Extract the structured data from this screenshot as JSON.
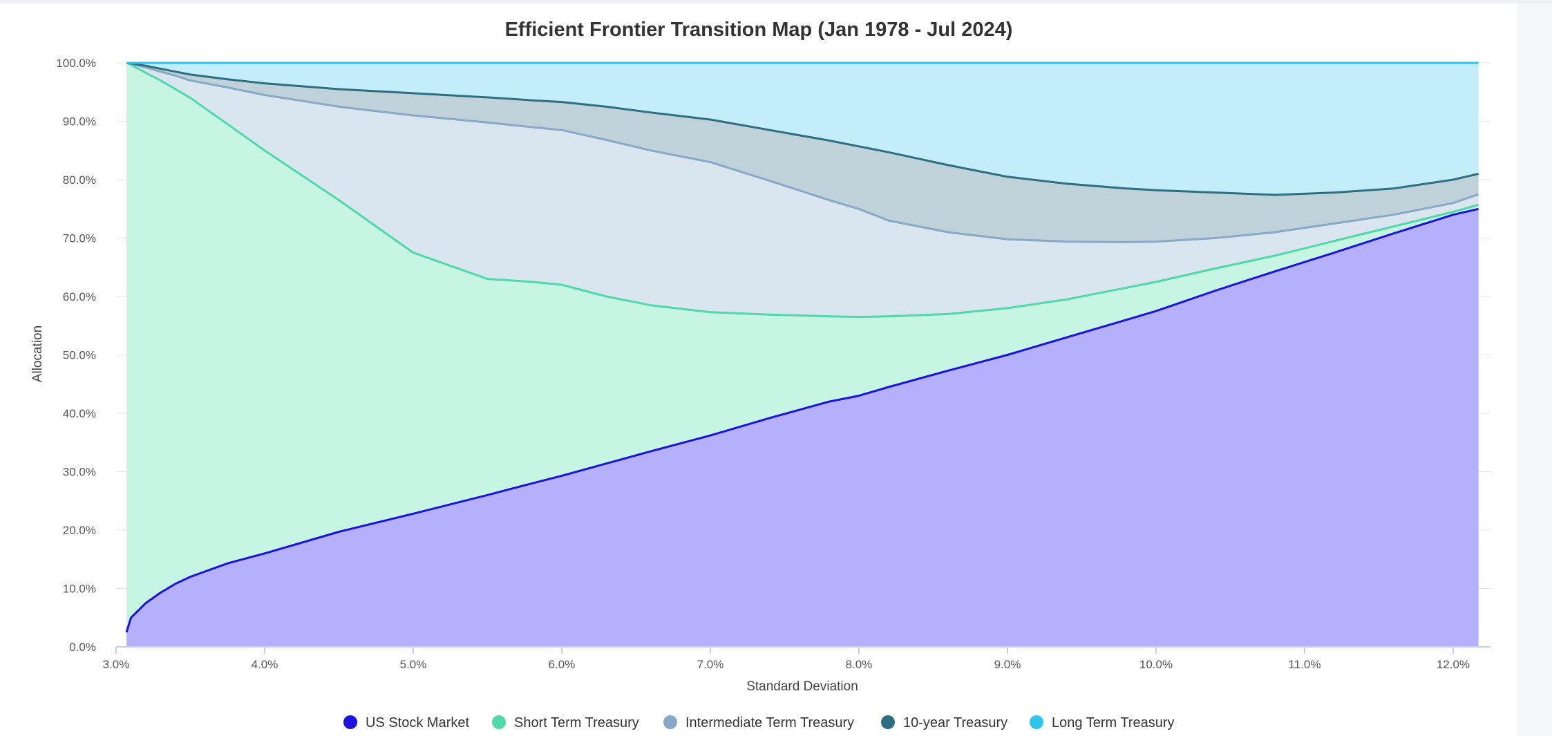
{
  "chart_data": {
    "type": "area",
    "stacked": true,
    "title": "Efficient Frontier Transition Map (Jan 1978 - Jul 2024)",
    "xlabel": "Standard Deviation",
    "ylabel": "Allocation",
    "xlim": [
      3.0,
      12.25
    ],
    "ylim": [
      0,
      100
    ],
    "x_ticks": [
      "3.0%",
      "4.0%",
      "5.0%",
      "6.0%",
      "7.0%",
      "8.0%",
      "9.0%",
      "10.0%",
      "11.0%",
      "12.0%"
    ],
    "y_ticks": [
      "0.0%",
      "10.0%",
      "20.0%",
      "30.0%",
      "40.0%",
      "50.0%",
      "60.0%",
      "70.0%",
      "80.0%",
      "90.0%",
      "100.0%"
    ],
    "grid": "horizontal",
    "legend_position": "bottom-center",
    "x": [
      3.07,
      3.1,
      3.2,
      3.3,
      3.4,
      3.5,
      3.75,
      4.0,
      4.5,
      5.0,
      5.5,
      5.8,
      6.0,
      6.3,
      6.6,
      7.0,
      7.4,
      7.8,
      8.0,
      8.2,
      8.6,
      9.0,
      9.4,
      9.8,
      10.0,
      10.4,
      10.8,
      11.2,
      11.6,
      12.0,
      12.17
    ],
    "series": [
      {
        "name": "US Stock Market",
        "color": "#1c12e0",
        "fill": "#b4b0fb",
        "cumulative_top": [
          2.5,
          5.0,
          7.5,
          9.3,
          10.8,
          12.0,
          14.3,
          16.0,
          19.7,
          22.8,
          26.0,
          28.0,
          29.3,
          31.4,
          33.5,
          36.2,
          39.2,
          42.0,
          43.0,
          44.5,
          47.3,
          50.0,
          53.0,
          56.0,
          57.5,
          61.0,
          64.3,
          67.5,
          70.8,
          74.0,
          75.0
        ]
      },
      {
        "name": "Short Term Treasury",
        "color": "#4fd8a8",
        "fill": "#c6f5e4",
        "cumulative_top": [
          100.0,
          99.7,
          98.3,
          97.0,
          95.5,
          94.0,
          89.5,
          85.0,
          76.5,
          67.5,
          63.0,
          62.5,
          62.0,
          60.0,
          58.5,
          57.3,
          56.9,
          56.6,
          56.5,
          56.6,
          57.0,
          58.0,
          59.5,
          61.5,
          62.5,
          64.8,
          67.0,
          69.5,
          72.0,
          74.5,
          75.7
        ]
      },
      {
        "name": "Intermediate Term Treasury",
        "color": "#88a8c8",
        "fill": "#d9e5ef",
        "cumulative_top": [
          100.0,
          99.9,
          99.2,
          98.5,
          97.8,
          97.0,
          95.8,
          94.5,
          92.5,
          91.0,
          89.8,
          89.0,
          88.5,
          86.8,
          85.0,
          83.0,
          79.8,
          76.5,
          75.0,
          73.0,
          71.0,
          69.8,
          69.4,
          69.3,
          69.4,
          70.0,
          71.0,
          72.5,
          74.0,
          76.0,
          77.5
        ]
      },
      {
        "name": "10-year Treasury",
        "color": "#2d6e80",
        "fill": "#c0d2d9",
        "cumulative_top": [
          100.0,
          99.9,
          99.5,
          99.0,
          98.5,
          98.0,
          97.2,
          96.5,
          95.5,
          94.8,
          94.1,
          93.6,
          93.3,
          92.5,
          91.5,
          90.3,
          88.5,
          86.7,
          85.7,
          84.7,
          82.5,
          80.5,
          79.3,
          78.5,
          78.2,
          77.8,
          77.4,
          77.8,
          78.5,
          80.0,
          81.0
        ]
      },
      {
        "name": "Long Term Treasury",
        "color": "#2ec5ea",
        "fill": "#c3edf9",
        "cumulative_top": [
          100.0,
          100.0,
          100.0,
          100.0,
          100.0,
          100.0,
          100.0,
          100.0,
          100.0,
          100.0,
          100.0,
          100.0,
          100.0,
          100.0,
          100.0,
          100.0,
          100.0,
          100.0,
          100.0,
          100.0,
          100.0,
          100.0,
          100.0,
          100.0,
          100.0,
          100.0,
          100.0,
          100.0,
          100.0,
          100.0,
          100.0
        ]
      }
    ]
  }
}
